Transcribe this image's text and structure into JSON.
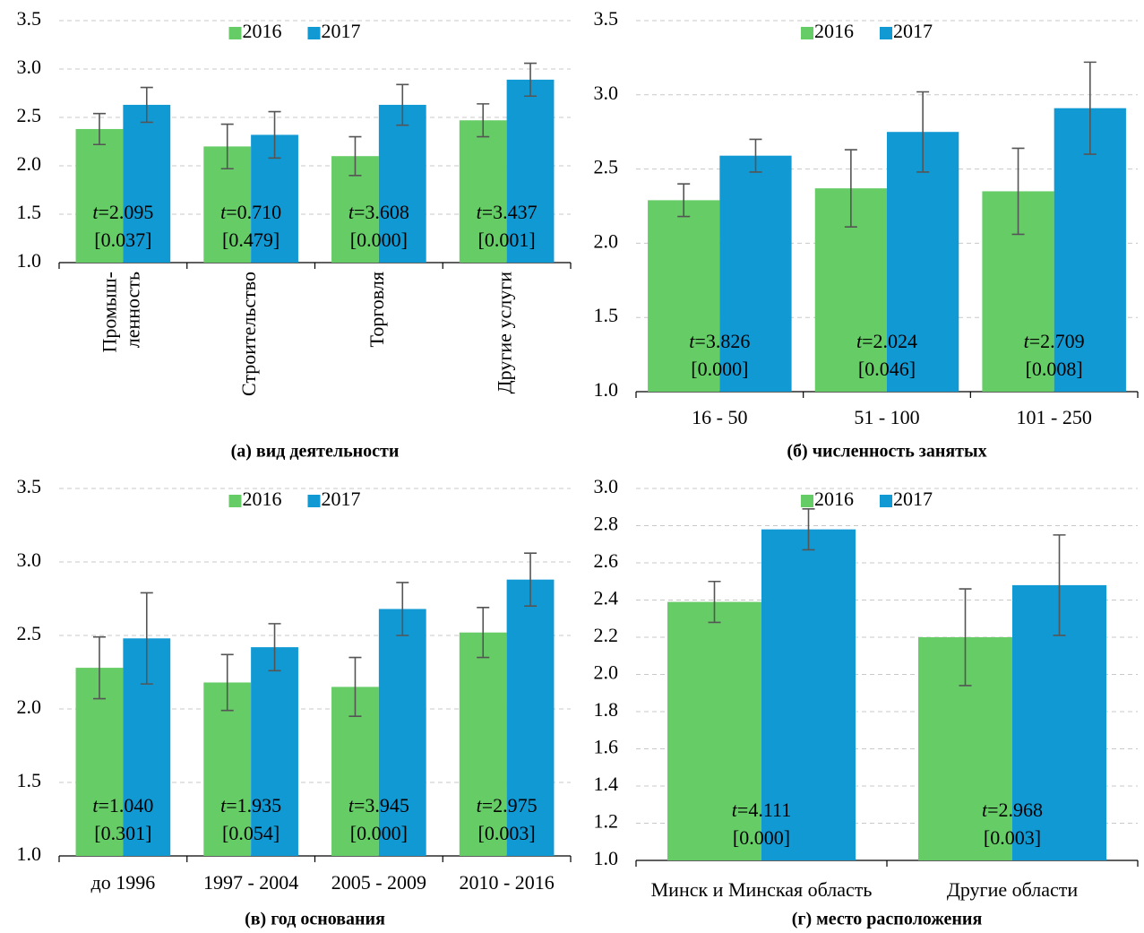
{
  "chart_data": [
    {
      "type": "bar",
      "title": "(а) вид деятельности",
      "categories": [
        "Промыш-\nленность",
        "Строительство",
        "Торговля",
        "Другие услуги"
      ],
      "series": [
        {
          "name": "2016",
          "color": "#66cc66",
          "values": [
            2.38,
            2.2,
            2.1,
            2.47
          ],
          "errors": [
            0.16,
            0.23,
            0.2,
            0.17
          ]
        },
        {
          "name": "2017",
          "color": "#1199d4",
          "values": [
            2.63,
            2.32,
            2.63,
            2.89
          ],
          "errors": [
            0.18,
            0.24,
            0.21,
            0.17
          ]
        }
      ],
      "annotations": [
        {
          "stat": "t=2.095",
          "p": "[0.037]"
        },
        {
          "stat": "t=0.710",
          "p": "[0.479]"
        },
        {
          "stat": "t=3.608",
          "p": "[0.000]"
        },
        {
          "stat": "t=3.437",
          "p": "[0.001]"
        }
      ],
      "ylim": [
        1.0,
        3.5
      ],
      "yticks": [
        {
          "value": 1.0,
          "label": "1.0"
        },
        1.5,
        {
          "value": 2.0,
          "label": "2.0"
        },
        2.5,
        {
          "value": 3.0,
          "label": "3.0"
        },
        3.5
      ],
      "grid": true,
      "legend": "top"
    },
    {
      "type": "bar",
      "title": "(б) численность занятых",
      "categories": [
        "16 - 50",
        "51 - 100",
        "101 - 250"
      ],
      "series": [
        {
          "name": "2016",
          "color": "#66cc66",
          "values": [
            2.29,
            2.37,
            2.35
          ],
          "errors": [
            0.11,
            0.26,
            0.29
          ]
        },
        {
          "name": "2017",
          "color": "#1199d4",
          "values": [
            2.59,
            2.75,
            2.91
          ],
          "errors": [
            0.11,
            0.27,
            0.31
          ]
        }
      ],
      "annotations": [
        {
          "stat": "t=3.826",
          "p": "[0.000]"
        },
        {
          "stat": "t=2.024",
          "p": "[0.046]"
        },
        {
          "stat": "t=2.709",
          "p": "[0.008]"
        }
      ],
      "ylim": [
        1.0,
        3.5
      ],
      "yticks": [
        {
          "value": 1.0,
          "label": "1.0"
        },
        1.5,
        {
          "value": 2.0,
          "label": "2.0"
        },
        2.5,
        {
          "value": 3.0,
          "label": "3.0"
        },
        3.5
      ],
      "grid": true,
      "legend": "top"
    },
    {
      "type": "bar",
      "title": "(в) год основания",
      "categories": [
        "до 1996",
        "1997 - 2004",
        "2005 - 2009",
        "2010 - 2016"
      ],
      "series": [
        {
          "name": "2016",
          "color": "#66cc66",
          "values": [
            2.28,
            2.18,
            2.15,
            2.52
          ],
          "errors": [
            0.21,
            0.19,
            0.2,
            0.17
          ]
        },
        {
          "name": "2017",
          "color": "#1199d4",
          "values": [
            2.48,
            2.42,
            2.68,
            2.88
          ],
          "errors": [
            0.31,
            0.16,
            0.18,
            0.18
          ]
        }
      ],
      "annotations": [
        {
          "stat": "t=1.040",
          "p": "[0.301]"
        },
        {
          "stat": "t=1.935",
          "p": "[0.054]"
        },
        {
          "stat": "t=3.945",
          "p": "[0.000]"
        },
        {
          "stat": "t=2.975",
          "p": "[0.003]"
        }
      ],
      "ylim": [
        1.0,
        3.5
      ],
      "yticks": [
        {
          "value": 1.0,
          "label": "1.0"
        },
        1.5,
        {
          "value": 2.0,
          "label": "2.0"
        },
        2.5,
        {
          "value": 3.0,
          "label": "3.0"
        },
        3.5
      ],
      "grid": true,
      "legend": "top"
    },
    {
      "type": "bar",
      "title": "(г) место расположения",
      "categories": [
        "Минск и Минская область",
        "Другие области"
      ],
      "series": [
        {
          "name": "2016",
          "color": "#66cc66",
          "values": [
            2.39,
            2.2
          ],
          "errors": [
            0.11,
            0.26
          ]
        },
        {
          "name": "2017",
          "color": "#1199d4",
          "values": [
            2.78,
            2.48
          ],
          "errors": [
            0.11,
            0.27
          ]
        }
      ],
      "annotations": [
        {
          "stat": "t=4.111",
          "p": "[0.000]"
        },
        {
          "stat": "t=2.968",
          "p": "[0.003]"
        }
      ],
      "ylim": [
        1.0,
        3.0
      ],
      "yticks": [
        {
          "value": 1.0,
          "label": "1.0"
        },
        1.2,
        1.4,
        1.6,
        1.8,
        {
          "value": 2.0,
          "label": "2.0"
        },
        2.2,
        2.4,
        2.6,
        2.8,
        {
          "value": 3.0,
          "label": "3.0"
        }
      ],
      "grid": true,
      "legend": "top"
    }
  ]
}
